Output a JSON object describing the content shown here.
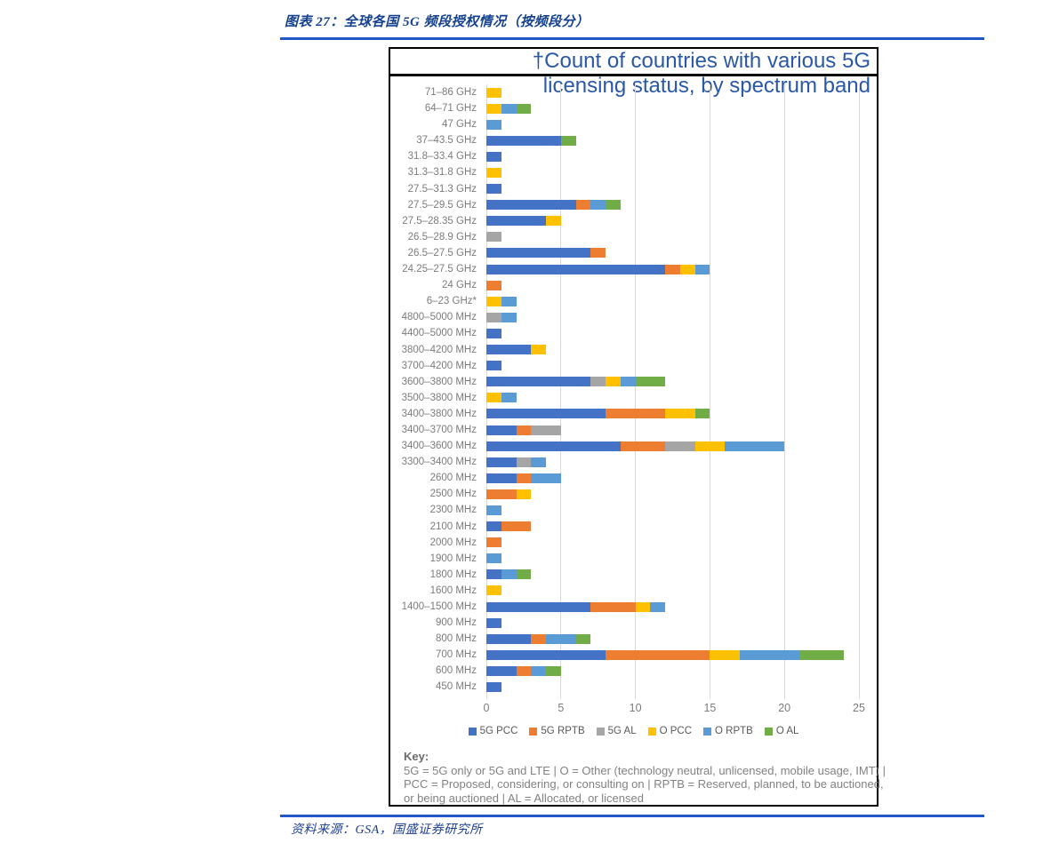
{
  "page": {
    "figure_label": "图表 27：全球各国 5G 频段授权情况（按频段分）",
    "source_text": "资料来源：GSA，国盛证券研究所"
  },
  "chart_data": {
    "type": "bar",
    "orientation": "horizontal",
    "stacked": true,
    "title_line1": "†Count of countries with various 5G",
    "title_line2": "licensing status, by spectrum band",
    "xlim": [
      0,
      25
    ],
    "x_ticks": [
      0,
      5,
      10,
      15,
      20,
      25
    ],
    "grid": true,
    "legend_position": "bottom",
    "series_names": [
      "5G PCC",
      "5G RPTB",
      "5G AL",
      "O PCC",
      "O RPTB",
      "O AL"
    ],
    "series_colors": [
      "#4472C4",
      "#ED7D31",
      "#A5A5A5",
      "#FFC000",
      "#5B9BD5",
      "#70AD47"
    ],
    "title_color": "#2a58a9",
    "categories": [
      "71–86 GHz",
      "64–71 GHz",
      "47 GHz",
      "37–43.5 GHz",
      "31.8–33.4 GHz",
      "31.3–31.8 GHz",
      "27.5–31.3 GHz",
      "27.5–29.5 GHz",
      "27.5–28.35 GHz",
      "26.5–28.9 GHz",
      "26.5–27.5 GHz",
      "24.25–27.5 GHz",
      "24 GHz",
      "6–23 GHz*",
      "4800–5000 MHz",
      "4400–5000 MHz",
      "3800–4200 MHz",
      "3700–4200 MHz",
      "3600–3800 MHz",
      "3500–3800 MHz",
      "3400–3800 MHz",
      "3400–3700 MHz",
      "3400–3600 MHz",
      "3300–3400 MHz",
      "2600 MHz",
      "2500 MHz",
      "2300 MHz",
      "2100 MHz",
      "2000 MHz",
      "1900 MHz",
      "1800 MHz",
      "1600 MHz",
      "1400–1500 MHz",
      "900 MHz",
      "800 MHz",
      "700 MHz",
      "600 MHz",
      "450 MHz"
    ],
    "values": [
      [
        0,
        0,
        0,
        1,
        0,
        0
      ],
      [
        0,
        0,
        0,
        1,
        1,
        1
      ],
      [
        0,
        0,
        0,
        0,
        1,
        0
      ],
      [
        5,
        0,
        0,
        0,
        0,
        1
      ],
      [
        1,
        0,
        0,
        0,
        0,
        0
      ],
      [
        0,
        0,
        0,
        1,
        0,
        0
      ],
      [
        1,
        0,
        0,
        0,
        0,
        0
      ],
      [
        6,
        1,
        0,
        0,
        1,
        1
      ],
      [
        4,
        0,
        0,
        1,
        0,
        0
      ],
      [
        0,
        0,
        1,
        0,
        0,
        0
      ],
      [
        7,
        1,
        0,
        0,
        0,
        0
      ],
      [
        12,
        1,
        0,
        1,
        1,
        0
      ],
      [
        0,
        1,
        0,
        0,
        0,
        0
      ],
      [
        0,
        0,
        0,
        1,
        1,
        0
      ],
      [
        0,
        0,
        1,
        0,
        1,
        0
      ],
      [
        1,
        0,
        0,
        0,
        0,
        0
      ],
      [
        3,
        0,
        0,
        1,
        0,
        0
      ],
      [
        1,
        0,
        0,
        0,
        0,
        0
      ],
      [
        7,
        0,
        1,
        1,
        1,
        2
      ],
      [
        0,
        0,
        0,
        1,
        1,
        0
      ],
      [
        8,
        4,
        0,
        2,
        0,
        1
      ],
      [
        2,
        1,
        2,
        0,
        0,
        0
      ],
      [
        9,
        3,
        2,
        2,
        4,
        0
      ],
      [
        2,
        0,
        1,
        0,
        1,
        0
      ],
      [
        2,
        1,
        0,
        0,
        2,
        0
      ],
      [
        0,
        2,
        0,
        1,
        0,
        0
      ],
      [
        0,
        0,
        0,
        0,
        1,
        0
      ],
      [
        1,
        2,
        0,
        0,
        0,
        0
      ],
      [
        0,
        1,
        0,
        0,
        0,
        0
      ],
      [
        0,
        0,
        0,
        0,
        1,
        0
      ],
      [
        1,
        0,
        0,
        0,
        1,
        1
      ],
      [
        0,
        0,
        0,
        1,
        0,
        0
      ],
      [
        7,
        3,
        0,
        1,
        1,
        0
      ],
      [
        1,
        0,
        0,
        0,
        0,
        0
      ],
      [
        3,
        1,
        0,
        0,
        2,
        1
      ],
      [
        8,
        7,
        0,
        2,
        4,
        3
      ],
      [
        2,
        1,
        0,
        0,
        1,
        1
      ],
      [
        1,
        0,
        0,
        0,
        0,
        0
      ]
    ],
    "key_title": "Key:",
    "key_text": "5G = 5G only or 5G and LTE | O = Other (technology neutral, unlicensed, mobile usage, IMT) | PCC = Proposed, considering, or consulting on | RPTB = Reserved, planned, to be auctioned, or being auctioned | AL = Allocated, or licensed"
  }
}
